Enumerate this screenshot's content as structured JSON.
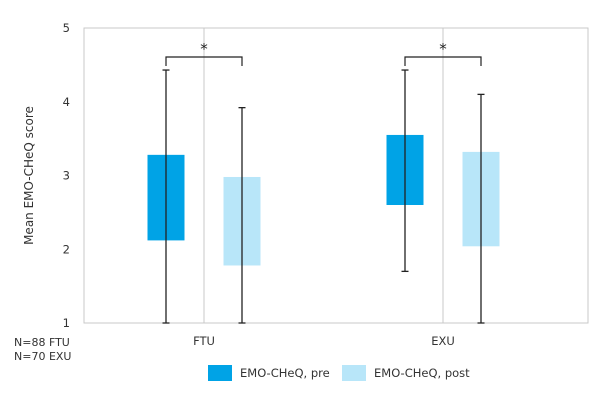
{
  "chart_data": {
    "type": "box",
    "categories": [
      "FTU",
      "EXU"
    ],
    "ylabel": "Mean EMO-CHeQ score",
    "ylim": [
      1,
      5
    ],
    "yticks": [
      "1",
      "2",
      "3",
      "4",
      "5"
    ],
    "grid": "vertical",
    "series": [
      {
        "name": "EMO-CHeQ, pre",
        "color": "#00a3e6",
        "boxes": [
          {
            "category": "FTU",
            "whisker_low": 1.0,
            "box_low": 2.12,
            "box_high": 3.28,
            "whisker_high": 4.43
          },
          {
            "category": "EXU",
            "whisker_low": 1.7,
            "box_low": 2.6,
            "box_high": 3.55,
            "whisker_high": 4.43
          }
        ]
      },
      {
        "name": "EMO-CHeQ, post",
        "color": "#b8e6f9",
        "boxes": [
          {
            "category": "FTU",
            "whisker_low": 1.0,
            "box_low": 1.78,
            "box_high": 2.98,
            "whisker_high": 3.92
          },
          {
            "category": "EXU",
            "whisker_low": 1.0,
            "box_low": 2.04,
            "box_high": 3.32,
            "whisker_high": 4.1
          }
        ]
      }
    ],
    "significance": [
      {
        "category": "FTU",
        "label": "*"
      },
      {
        "category": "EXU",
        "label": "*"
      }
    ],
    "sample_notes": [
      "N=88 FTU",
      "N=70 EXU"
    ]
  }
}
